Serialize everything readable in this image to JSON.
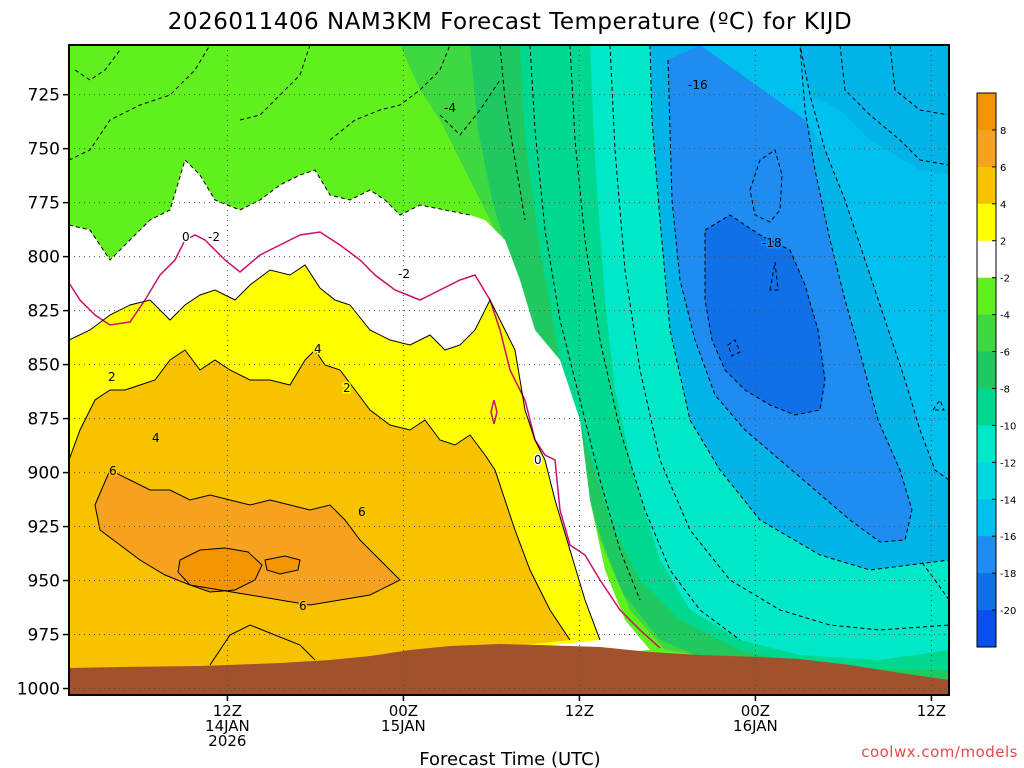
{
  "chart_data": {
    "type": "heatmap",
    "title": "2026011406 NAM3KM Forecast Temperature (ºC) for KIJD",
    "xlabel": "Forecast Time (UTC)",
    "ylabel": "",
    "y_axis": {
      "ticks": [
        725,
        750,
        775,
        800,
        825,
        850,
        875,
        900,
        925,
        950,
        975,
        1000
      ],
      "tick_labels": [
        "725",
        "750",
        "775",
        "800",
        "825",
        "850",
        "875",
        "900",
        "925",
        "950",
        "975",
        "1000"
      ],
      "range": [
        1003,
        702
      ],
      "inverted": true
    },
    "x_axis": {
      "range_hours": [
        -9,
        41
      ],
      "ticks": [
        {
          "hour": 0,
          "label": "12Z",
          "label2": "14JAN",
          "label3": "2026"
        },
        {
          "hour": 10,
          "label": "00Z",
          "label2": "15JAN",
          "label3": ""
        },
        {
          "hour": 20,
          "label": "12Z",
          "label2": "",
          "label3": ""
        },
        {
          "hour": 30,
          "label": "00Z",
          "label2": "16JAN",
          "label3": ""
        },
        {
          "hour": 40,
          "label": "12Z",
          "label2": "",
          "label3": ""
        }
      ]
    },
    "grid": true,
    "colorbar": {
      "labels": [
        "8",
        "6",
        "4",
        "2",
        "-2",
        "-4",
        "-6",
        "-8",
        "-10",
        "-12",
        "-14",
        "-16",
        "-18",
        "-20"
      ]
    },
    "contour_labels": [
      "-16",
      "-4",
      "0",
      "-2",
      "-18",
      "-2",
      "2",
      "4",
      "2",
      "4",
      "0",
      "6",
      "6",
      "6"
    ],
    "terrain_color": "#a0522d",
    "watermark": "coolwx.com/models"
  }
}
